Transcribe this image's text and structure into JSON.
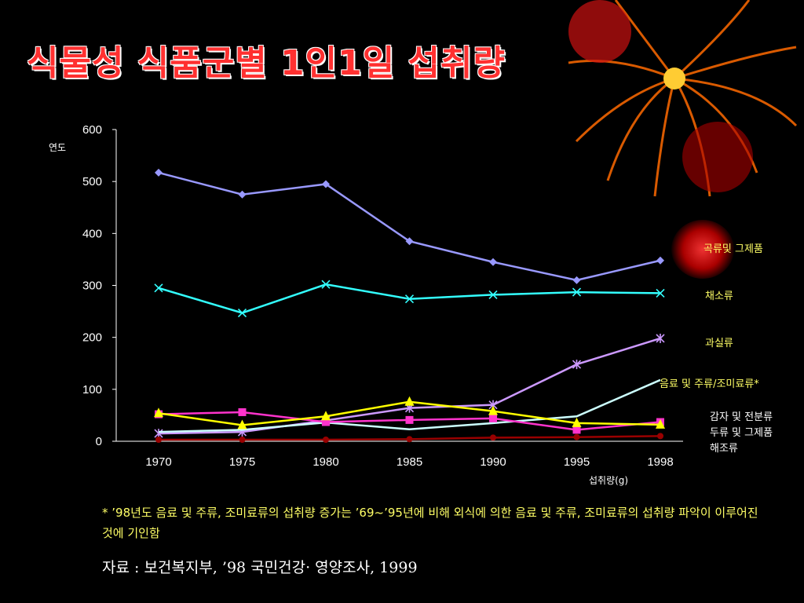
{
  "title": "식물성 식품군별 1인1일 섭취량",
  "note": "* ’98년도 음료 및 주류, 조미료류의 섭취량 증가는 ’69~’95년에 비해 외식에 의한 음료 및 주류, 조미료류의 섭취량 파악이 이루어진 것에 기인함",
  "source": "자료 : 보건복지부, ’98 국민건강· 영양조사, 1999",
  "colors": {
    "background": "#000000",
    "title": "#ff3030",
    "legend": "#ffff66"
  },
  "chart_data": {
    "type": "line",
    "ylabel": "연도",
    "xlabel": "섭취량(g)",
    "ylim": [
      0,
      600
    ],
    "yticks": [
      "0",
      "100",
      "200",
      "300",
      "400",
      "500",
      "600"
    ],
    "categories": [
      "1970",
      "1975",
      "1980",
      "1985",
      "1990",
      "1995",
      "1998"
    ],
    "series": [
      {
        "name": "곡류및 그제품",
        "color": "#9999ff",
        "marker": "diamond",
        "values": [
          517,
          475,
          495,
          385,
          345,
          310,
          348
        ]
      },
      {
        "name": "채소류",
        "color": "#33ffff",
        "marker": "x",
        "values": [
          295,
          247,
          302,
          274,
          282,
          287,
          285
        ]
      },
      {
        "name": "과실류",
        "color": "#cc99ff",
        "marker": "star",
        "values": [
          15,
          18,
          40,
          64,
          70,
          148,
          198
        ]
      },
      {
        "name": "음료 및 주류/조미료류*",
        "color": "#ccffff",
        "marker": "none",
        "values": [
          18,
          22,
          36,
          23,
          35,
          48,
          118
        ]
      },
      {
        "name": "감자 및 전분류",
        "color": "#ff33cc",
        "marker": "square",
        "values": [
          52,
          56,
          37,
          41,
          44,
          22,
          37
        ]
      },
      {
        "name": "두류 및 그제품",
        "color": "#ffff00",
        "marker": "triangle",
        "values": [
          54,
          31,
          48,
          76,
          58,
          35,
          32
        ]
      },
      {
        "name": "해조류",
        "color": "#990000",
        "marker": "circle",
        "values": [
          3,
          3,
          3,
          4,
          7,
          8,
          10
        ]
      }
    ]
  }
}
